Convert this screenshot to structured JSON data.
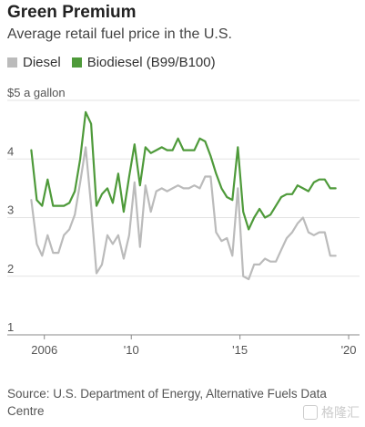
{
  "chart_data": {
    "type": "line",
    "title": "Green Premium",
    "subtitle": "Average retail fuel price in the U.S.",
    "ylabel": "$5 a gallon",
    "ylim": [
      1,
      5
    ],
    "xlim": [
      2005.3,
      2020.5
    ],
    "y_ticks": [
      {
        "value": 5,
        "label": "$5 a gallon"
      },
      {
        "value": 4,
        "label": "4"
      },
      {
        "value": 3,
        "label": "3"
      },
      {
        "value": 2,
        "label": "2"
      },
      {
        "value": 1,
        "label": "1"
      }
    ],
    "x_ticks": [
      {
        "value": 2006,
        "label": "2006"
      },
      {
        "value": 2010,
        "label": "'10"
      },
      {
        "value": 2015,
        "label": "'15"
      },
      {
        "value": 2020,
        "label": "'20"
      }
    ],
    "grid": true,
    "legend_position": "top-left",
    "colors": {
      "diesel": "#bbbbbb",
      "biodiesel": "#4e9a3a",
      "grid": "#e3e3e3"
    },
    "series": [
      {
        "name": "Diesel",
        "color": "#bbbbbb",
        "x": [
          2005.4,
          2005.65,
          2005.9,
          2006.15,
          2006.4,
          2006.65,
          2006.9,
          2007.15,
          2007.4,
          2007.65,
          2007.9,
          2008.15,
          2008.4,
          2008.65,
          2008.9,
          2009.15,
          2009.4,
          2009.65,
          2009.9,
          2010.15,
          2010.4,
          2010.65,
          2010.9,
          2011.15,
          2011.4,
          2011.65,
          2011.9,
          2012.15,
          2012.4,
          2012.65,
          2012.9,
          2013.15,
          2013.4,
          2013.65,
          2013.9,
          2014.15,
          2014.4,
          2014.65,
          2014.9,
          2015.15,
          2015.4,
          2015.65,
          2015.9,
          2016.15,
          2016.4,
          2016.65,
          2016.9,
          2017.15,
          2017.4,
          2017.65,
          2017.9,
          2018.15,
          2018.4,
          2018.65,
          2018.9,
          2019.15,
          2019.4,
          2019.65,
          2019.9,
          2020.15,
          2020.4
        ],
        "values": [
          3.3,
          2.55,
          2.35,
          2.7,
          2.4,
          2.4,
          2.7,
          2.8,
          3.05,
          3.6,
          4.2,
          3.2,
          2.05,
          2.2,
          2.7,
          2.55,
          2.7,
          2.3,
          2.7,
          3.6,
          2.5,
          3.55,
          3.1,
          3.45,
          3.5,
          3.45,
          3.5,
          3.55,
          3.5,
          3.5,
          3.55,
          3.5,
          3.7,
          3.7,
          2.75,
          2.6,
          2.65,
          2.35,
          3.5,
          2.0,
          1.95,
          2.2,
          2.2,
          2.3,
          2.25,
          2.25,
          2.45,
          2.65,
          2.75,
          2.9,
          3.0,
          2.75,
          2.7,
          2.75,
          2.75,
          2.35,
          2.35,
          2.35,
          2.35,
          2.35,
          2.35
        ],
        "plot_count": 57
      },
      {
        "name": "Biodiesel (B99/B100)",
        "color": "#4e9a3a",
        "x": [
          2005.4,
          2005.65,
          2005.9,
          2006.15,
          2006.4,
          2006.65,
          2006.9,
          2007.15,
          2007.4,
          2007.65,
          2007.9,
          2008.15,
          2008.4,
          2008.65,
          2008.9,
          2009.15,
          2009.4,
          2009.65,
          2009.9,
          2010.15,
          2010.4,
          2010.65,
          2010.9,
          2011.15,
          2011.4,
          2011.65,
          2011.9,
          2012.15,
          2012.4,
          2012.65,
          2012.9,
          2013.15,
          2013.4,
          2013.65,
          2013.9,
          2014.15,
          2014.4,
          2014.65,
          2014.9,
          2015.15,
          2015.4,
          2015.65,
          2015.9,
          2016.15,
          2016.4,
          2016.65,
          2016.9,
          2017.15,
          2017.4,
          2017.65,
          2017.9,
          2018.15,
          2018.4,
          2018.65,
          2018.9,
          2019.15,
          2019.4,
          2019.65,
          2019.9,
          2020.15,
          2020.4
        ],
        "values": [
          4.15,
          3.3,
          3.2,
          3.65,
          3.2,
          3.2,
          3.2,
          3.25,
          3.45,
          4.0,
          4.8,
          4.6,
          3.2,
          3.4,
          3.5,
          3.25,
          3.75,
          3.1,
          3.7,
          4.25,
          3.55,
          4.2,
          4.1,
          4.15,
          4.2,
          4.15,
          4.15,
          4.35,
          4.15,
          4.15,
          4.15,
          4.35,
          4.3,
          4.05,
          3.75,
          3.5,
          3.35,
          3.3,
          4.2,
          3.1,
          2.8,
          3.0,
          3.15,
          3.0,
          3.05,
          3.2,
          3.35,
          3.4,
          3.4,
          3.55,
          3.5,
          3.45,
          3.6,
          3.65,
          3.65,
          3.5,
          3.5,
          3.5,
          3.5,
          3.5,
          3.5
        ],
        "plot_count": 57
      }
    ]
  },
  "source": "Source: U.S. Department of Energy, Alternative Fuels Data Centre",
  "watermark": "格隆汇"
}
